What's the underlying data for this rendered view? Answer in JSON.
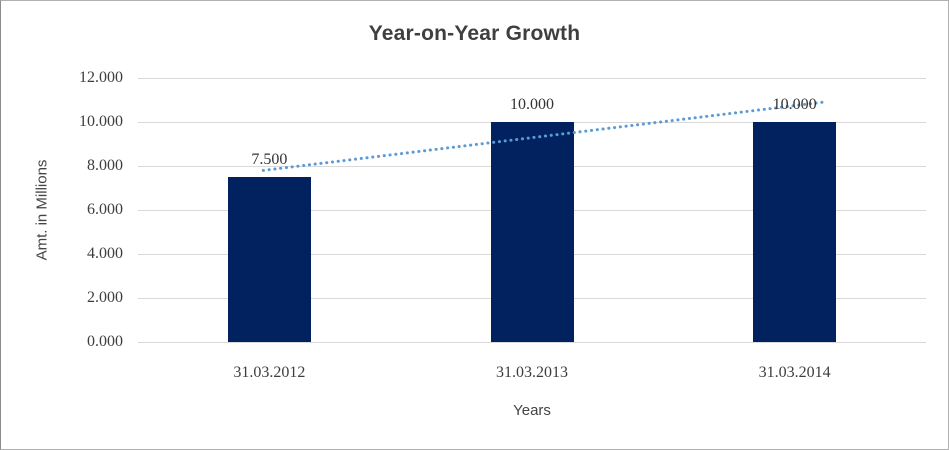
{
  "chart_data": {
    "type": "bar",
    "title": "Year-on-Year Growth",
    "xlabel": "Years",
    "ylabel": "Amt. in Millions",
    "categories": [
      "31.03.2012",
      "31.03.2013",
      "31.03.2014"
    ],
    "values": [
      7.5,
      10,
      10
    ],
    "value_labels": [
      "7.500",
      "10.000",
      "10.000"
    ],
    "ylim": [
      0,
      12
    ],
    "ytick_step": 2,
    "ytick_decimals": 3,
    "grid": "horizontal",
    "legend": "none",
    "bar_color": "#02215f",
    "gridline_color": "#d9d9d9",
    "axis_text_color": "#3d3d3d",
    "trendline": {
      "type": "linear",
      "style": "dotted",
      "color": "#5b9bd5",
      "start": {
        "x_frac": 0.159,
        "value": 7.8
      },
      "end": {
        "x_frac": 0.869,
        "value": 10.9
      }
    }
  }
}
